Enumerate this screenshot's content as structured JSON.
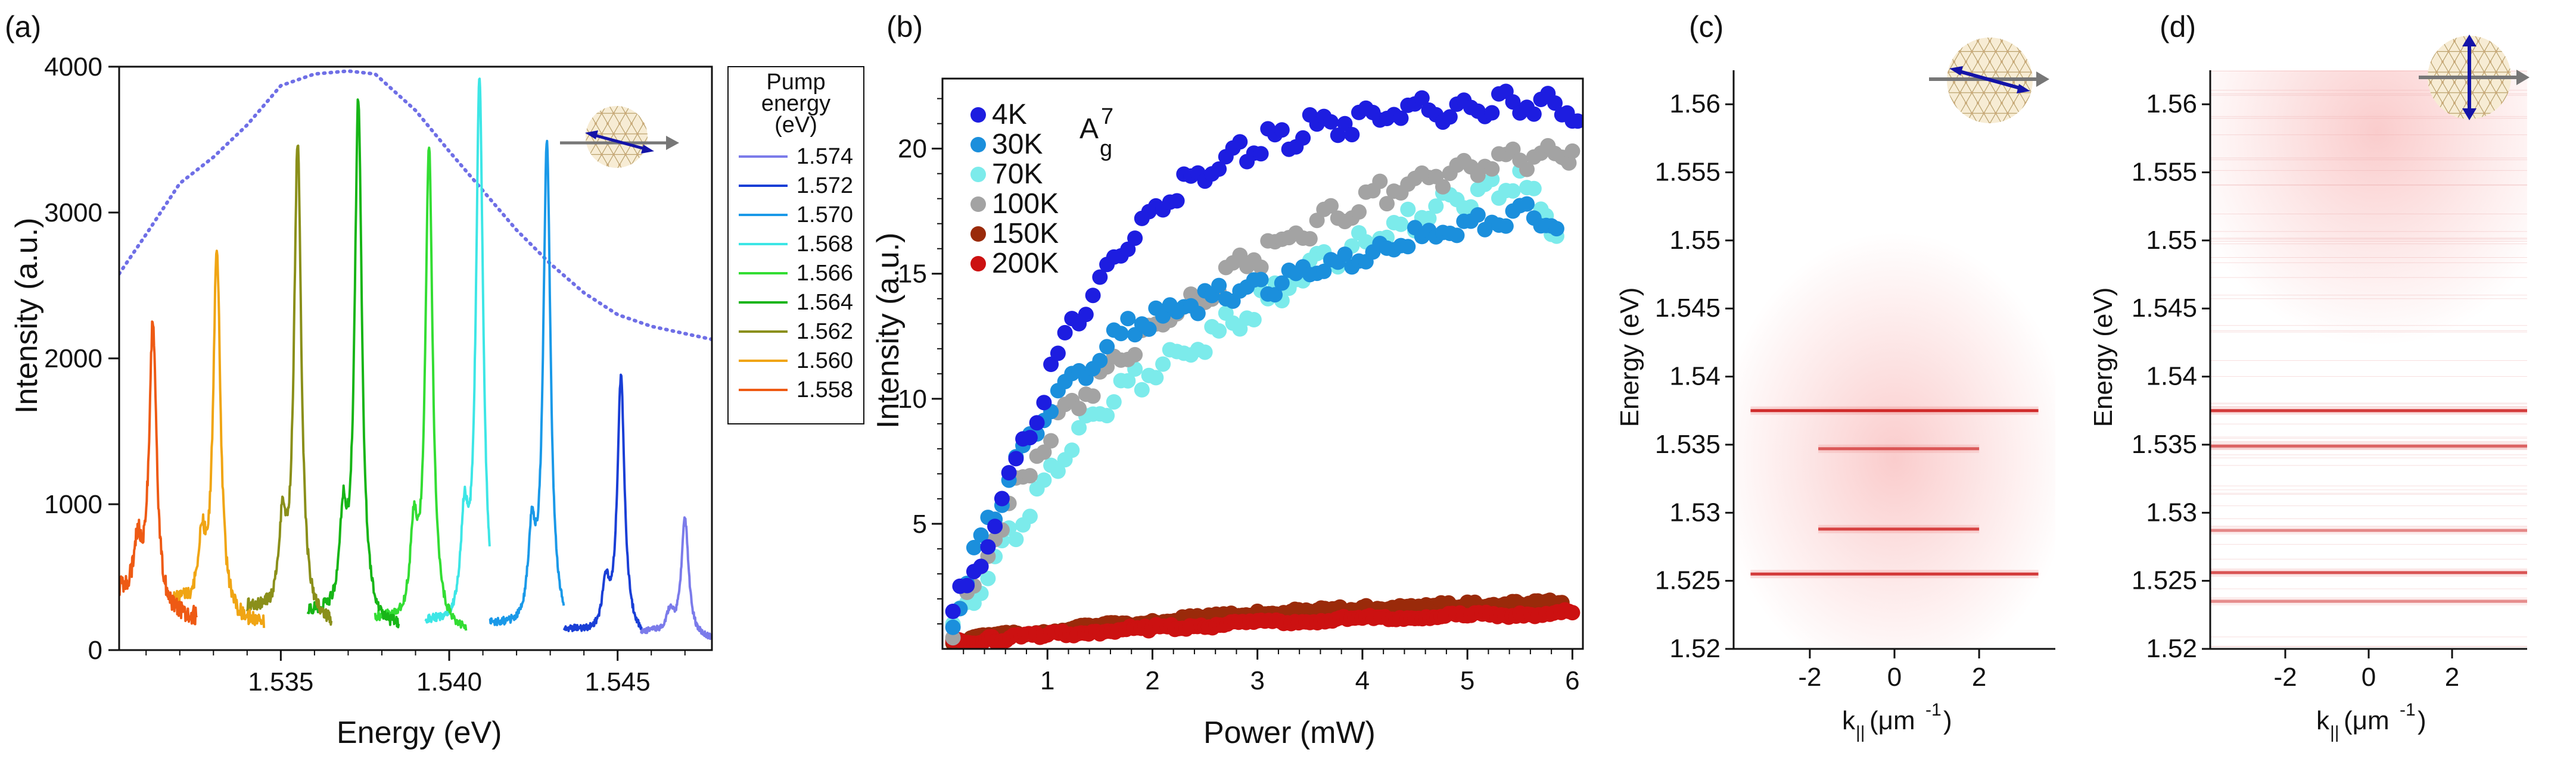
{
  "figure": {
    "panel_labels": [
      "(a)",
      "(b)",
      "(c)",
      "(d)"
    ]
  },
  "chart_data": [
    {
      "panel": "(a)",
      "type": "line",
      "title": "",
      "xlabel": "Energy (eV)",
      "ylabel": "Intensity (a.u.)",
      "xlim": [
        1.5302,
        1.5478
      ],
      "ylim": [
        0,
        4000
      ],
      "xticks": [
        1.535,
        1.54,
        1.545
      ],
      "xtick_labels": [
        "1.535",
        "1.540",
        "1.545"
      ],
      "yticks": [
        0,
        1000,
        2000,
        3000,
        4000
      ],
      "ytick_labels": [
        "0",
        "1000",
        "2000",
        "3000",
        "4000"
      ],
      "legend_title_lines": [
        "Pump",
        "energy",
        "(eV)"
      ],
      "series": [
        {
          "name": "1.574",
          "color": "#7b7bea",
          "peak_x": 1.547,
          "peak_y": 900,
          "base": 90,
          "start": 1.5457,
          "end": 1.5478
        },
        {
          "name": "1.572",
          "color": "#1a3fd6",
          "peak_x": 1.5451,
          "peak_y": 1870,
          "base": 100,
          "start": 1.5434,
          "end": 1.5457
        },
        {
          "name": "1.570",
          "color": "#1a99e8",
          "peak_x": 1.5429,
          "peak_y": 3470,
          "base": 120,
          "start": 1.5412,
          "end": 1.5434
        },
        {
          "name": "1.568",
          "color": "#3de6e6",
          "peak_x": 1.5409,
          "peak_y": 3900,
          "base": 130,
          "start": 1.5393,
          "end": 1.5412
        },
        {
          "name": "1.566",
          "color": "#33dd33",
          "peak_x": 1.5394,
          "peak_y": 3460,
          "base": 150,
          "start": 1.5378,
          "end": 1.5405
        },
        {
          "name": "1.564",
          "color": "#17b517",
          "peak_x": 1.5373,
          "peak_y": 3770,
          "base": 180,
          "start": 1.5358,
          "end": 1.5385
        },
        {
          "name": "1.562",
          "color": "#8a8f1a",
          "peak_x": 1.5355,
          "peak_y": 3480,
          "base": 200,
          "start": 1.534,
          "end": 1.5365
        },
        {
          "name": "1.560",
          "color": "#f0a514",
          "peak_x": 1.5331,
          "peak_y": 2780,
          "base": 230,
          "start": 1.5318,
          "end": 1.5345
        },
        {
          "name": "1.558",
          "color": "#ee5a14",
          "peak_x": 1.5312,
          "peak_y": 2230,
          "base": 280,
          "start": 1.5302,
          "end": 1.5325
        }
      ],
      "envelope": {
        "name": "dotted envelope",
        "color": "#6f6fe6",
        "x": [
          1.5302,
          1.531,
          1.532,
          1.533,
          1.534,
          1.535,
          1.536,
          1.537,
          1.5378,
          1.539,
          1.54,
          1.541,
          1.542,
          1.543,
          1.544,
          1.545,
          1.546,
          1.547,
          1.5478
        ],
        "y": [
          2580,
          2850,
          3200,
          3380,
          3600,
          3870,
          3950,
          3970,
          3950,
          3700,
          3420,
          3150,
          2880,
          2650,
          2450,
          2300,
          2220,
          2170,
          2130
        ]
      }
    },
    {
      "panel": "(b)",
      "type": "scatter",
      "title": "",
      "xlabel": "Power (mW)",
      "ylabel": "Intensity (a.u.)",
      "xlim": [
        0,
        6.1
      ],
      "ylim": [
        0,
        22.8
      ],
      "xticks": [
        1,
        2,
        3,
        4,
        5,
        6
      ],
      "xtick_labels": [
        "1",
        "2",
        "3",
        "4",
        "5",
        "6"
      ],
      "yticks": [
        5,
        10,
        15,
        20
      ],
      "ytick_labels": [
        "5",
        "10",
        "15",
        "20"
      ],
      "annotation": {
        "base": "A",
        "sup": "7",
        "sub": "g"
      },
      "series": [
        {
          "name": "4K",
          "color": "#1d1de0",
          "x": [
            0.1,
            0.3,
            0.5,
            0.7,
            0.9,
            1.1,
            1.3,
            1.5,
            1.7,
            1.9,
            2.1,
            2.3,
            2.5,
            2.7,
            2.9,
            3.1,
            3.3,
            3.5,
            3.7,
            3.9,
            4.1,
            4.3,
            4.5,
            4.7,
            4.9,
            5.1,
            5.3,
            5.5,
            5.7,
            5.9,
            6.05
          ],
          "y": [
            1.5,
            3.0,
            5.0,
            7.3,
            9.5,
            11.5,
            13.3,
            14.8,
            16.0,
            17.2,
            17.9,
            18.6,
            19.2,
            19.6,
            20.0,
            20.3,
            20.5,
            20.8,
            20.9,
            21.1,
            21.2,
            21.4,
            21.5,
            21.6,
            21.5,
            21.7,
            21.8,
            21.9,
            21.8,
            21.7,
            21.1
          ]
        },
        {
          "name": "30K",
          "color": "#1b8fdc",
          "x": [
            0.1,
            0.3,
            0.5,
            0.7,
            0.9,
            1.1,
            1.3,
            1.5,
            1.7,
            1.9,
            2.1,
            2.3,
            2.5,
            2.7,
            2.9,
            3.1,
            3.3,
            3.5,
            3.7,
            3.9,
            4.1,
            4.3,
            4.5,
            4.7,
            4.9,
            5.1,
            5.3,
            5.5,
            5.7,
            5.85
          ],
          "y": [
            1.2,
            3.5,
            5.5,
            7.5,
            9.0,
            10.2,
            11.0,
            11.8,
            12.5,
            13.0,
            13.3,
            13.7,
            14.0,
            14.2,
            14.4,
            14.6,
            14.9,
            15.1,
            15.3,
            15.6,
            15.8,
            16.1,
            16.4,
            16.6,
            16.9,
            17.1,
            17.3,
            17.6,
            17.2,
            16.8
          ]
        },
        {
          "name": "70K",
          "color": "#7cebeb",
          "x": [
            0.1,
            0.3,
            0.5,
            0.7,
            0.9,
            1.1,
            1.3,
            1.5,
            1.7,
            1.9,
            2.1,
            2.3,
            2.5,
            2.7,
            2.9,
            3.1,
            3.3,
            3.5,
            3.7,
            3.9,
            4.1,
            4.3,
            4.5,
            4.7,
            4.9,
            5.1,
            5.3,
            5.5,
            5.7,
            5.85
          ],
          "y": [
            1.0,
            2.0,
            3.3,
            4.8,
            6.2,
            7.6,
            8.7,
            9.6,
            10.3,
            10.9,
            11.3,
            11.8,
            12.3,
            12.9,
            13.5,
            14.0,
            14.6,
            15.1,
            15.6,
            16.0,
            16.4,
            16.8,
            17.2,
            17.6,
            18.0,
            18.3,
            18.5,
            18.6,
            17.8,
            16.5
          ]
        },
        {
          "name": "100K",
          "color": "#a3a3a3",
          "x": [
            0.1,
            0.3,
            0.5,
            0.7,
            0.9,
            1.1,
            1.3,
            1.5,
            1.7,
            1.9,
            2.1,
            2.3,
            2.5,
            2.7,
            2.9,
            3.1,
            3.3,
            3.5,
            3.7,
            3.9,
            4.1,
            4.3,
            4.5,
            4.7,
            4.9,
            5.1,
            5.3,
            5.5,
            5.7,
            5.9,
            6.0
          ],
          "y": [
            0.8,
            2.5,
            4.5,
            6.3,
            7.8,
            9.0,
            10.0,
            10.9,
            11.6,
            12.3,
            13.0,
            13.6,
            14.2,
            14.8,
            15.4,
            16.0,
            16.5,
            16.9,
            17.3,
            17.7,
            18.1,
            18.4,
            18.7,
            18.9,
            19.1,
            19.3,
            19.5,
            19.6,
            19.7,
            19.8,
            19.9
          ]
        },
        {
          "name": "150K",
          "color": "#9a2a0a",
          "x": [
            0.1,
            0.5,
            1.0,
            1.5,
            2.0,
            2.5,
            3.0,
            3.5,
            4.0,
            4.5,
            5.0,
            5.5,
            5.9
          ],
          "y": [
            0.3,
            0.5,
            0.7,
            0.9,
            1.1,
            1.25,
            1.4,
            1.5,
            1.6,
            1.7,
            1.75,
            1.8,
            1.85
          ]
        },
        {
          "name": "200K",
          "color": "#cc1111",
          "x": [
            0.1,
            0.5,
            1.0,
            1.5,
            2.0,
            2.5,
            3.0,
            3.5,
            4.0,
            4.5,
            5.0,
            5.5,
            6.0
          ],
          "y": [
            0.25,
            0.4,
            0.55,
            0.7,
            0.85,
            0.95,
            1.05,
            1.12,
            1.2,
            1.27,
            1.33,
            1.38,
            1.45
          ]
        }
      ]
    },
    {
      "panel": "(c)",
      "type": "heatmap",
      "title": "",
      "xlabel": "k",
      "xlabel_sub": "||",
      "xlabel_unit": " (μm",
      "xlabel_unit_sup": "-1",
      "xlabel_tail": ")",
      "ylabel": "Energy (eV)",
      "xlim": [
        -3.8,
        3.8
      ],
      "ylim": [
        1.52,
        1.5625
      ],
      "xticks": [
        -2,
        0,
        2
      ],
      "xtick_labels": [
        "-2",
        "0",
        "2"
      ],
      "yticks": [
        1.52,
        1.525,
        1.53,
        1.535,
        1.54,
        1.545,
        1.55,
        1.555,
        1.56
      ],
      "ytick_labels": [
        "1.52",
        "1.525",
        "1.53",
        "1.535",
        "1.54",
        "1.545",
        "1.55",
        "1.555",
        "1.56"
      ],
      "lines": [
        {
          "energy": 1.5375,
          "k_min": -3.4,
          "k_max": 3.4,
          "strength": 1.0
        },
        {
          "energy": 1.5347,
          "k_min": -1.8,
          "k_max": 2.0,
          "strength": 0.6
        },
        {
          "energy": 1.5288,
          "k_min": -1.8,
          "k_max": 2.0,
          "strength": 0.8
        },
        {
          "energy": 1.5255,
          "k_min": -3.4,
          "k_max": 3.4,
          "strength": 0.9
        }
      ],
      "glow": {
        "energy": 1.534,
        "k": 0.0,
        "color": "#f05050"
      }
    },
    {
      "panel": "(d)",
      "type": "heatmap",
      "title": "",
      "xlabel": "k",
      "xlabel_sub": "||",
      "xlabel_unit": " (μm",
      "xlabel_unit_sup": "-1",
      "xlabel_tail": ")",
      "ylabel": "Energy (eV)",
      "xlim": [
        -3.8,
        3.8
      ],
      "ylim": [
        1.52,
        1.5625
      ],
      "xticks": [
        -2,
        0,
        2
      ],
      "xtick_labels": [
        "-2",
        "0",
        "2"
      ],
      "yticks": [
        1.52,
        1.525,
        1.53,
        1.535,
        1.54,
        1.545,
        1.55,
        1.555,
        1.56
      ],
      "ytick_labels": [
        "1.52",
        "1.525",
        "1.53",
        "1.535",
        "1.54",
        "1.545",
        "1.55",
        "1.555",
        "1.56"
      ],
      "lines": [
        {
          "energy": 1.5375,
          "k_min": -3.8,
          "k_max": 3.8,
          "strength": 0.9
        },
        {
          "energy": 1.5349,
          "k_min": -3.8,
          "k_max": 3.8,
          "strength": 0.6
        },
        {
          "energy": 1.5287,
          "k_min": -3.8,
          "k_max": 3.8,
          "strength": 0.35
        },
        {
          "energy": 1.5256,
          "k_min": -3.8,
          "k_max": 3.8,
          "strength": 0.7
        },
        {
          "energy": 1.5235,
          "k_min": -3.8,
          "k_max": 3.8,
          "strength": 0.3
        }
      ],
      "glow": {
        "energy": 1.558,
        "k": 0.2,
        "color": "#f05050"
      }
    }
  ]
}
